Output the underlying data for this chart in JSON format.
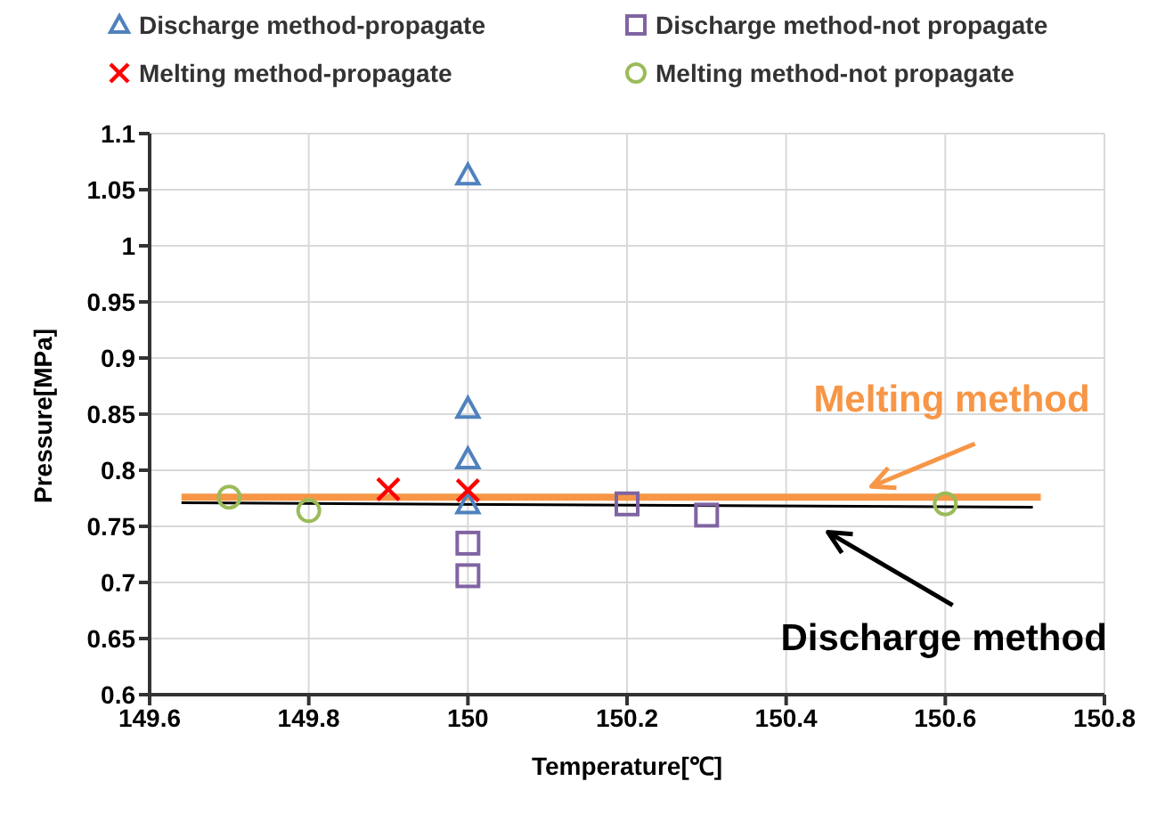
{
  "chart_data": {
    "type": "scatter",
    "xlabel": "Temperature[℃]",
    "ylabel": "Pressure[MPa]",
    "xlim": [
      149.6,
      150.8
    ],
    "xticks": [
      149.6,
      149.8,
      150,
      150.2,
      150.4,
      150.6,
      150.8
    ],
    "ylim": [
      0.6,
      1.1
    ],
    "yticks": [
      0.6,
      0.65,
      0.7,
      0.75,
      0.8,
      0.85,
      0.9,
      0.95,
      1,
      1.05,
      1.1
    ],
    "grid": true,
    "legend": "top",
    "series": [
      {
        "name": "Discharge method-propagate",
        "color": "#4f81bd",
        "marker": "triangle",
        "x": [
          150,
          150,
          150,
          150
        ],
        "values": [
          1.063,
          0.855,
          0.81,
          0.77
        ]
      },
      {
        "name": "Discharge method-not propagate",
        "color": "#8064a2",
        "marker": "square",
        "x": [
          150,
          150,
          150.2,
          150.3
        ],
        "values": [
          0.735,
          0.706,
          0.77,
          0.76
        ]
      },
      {
        "name": "Melting method-propagate",
        "color": "#ff0000",
        "marker": "cross",
        "x": [
          149.9,
          150
        ],
        "values": [
          0.783,
          0.782
        ]
      },
      {
        "name": "Melting method-not propagate",
        "color": "#9bbb59",
        "marker": "circle",
        "x": [
          149.7,
          149.8,
          150.6
        ],
        "values": [
          0.776,
          0.764,
          0.77
        ]
      },
      {
        "name": "Melting method",
        "type": "line",
        "color": "#f79646",
        "marker": "none",
        "x": [
          149.64,
          150.72
        ],
        "values": [
          0.776,
          0.776
        ]
      },
      {
        "name": "Discharge method",
        "type": "line",
        "color": "#000000",
        "marker": "none",
        "x": [
          149.64,
          150.71
        ],
        "values": [
          0.771,
          0.767
        ]
      }
    ]
  }
}
